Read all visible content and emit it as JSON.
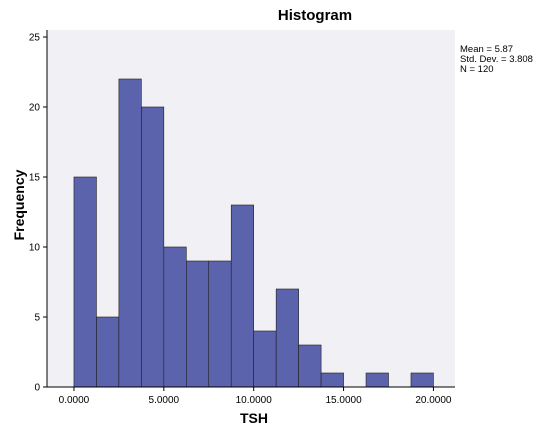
{
  "chart_data": {
    "type": "bar",
    "title": "Histogram",
    "xlabel": "TSH",
    "ylabel": "Frequency",
    "x_ticks": [
      "0.0000",
      "5.0000",
      "10.0000",
      "15.0000",
      "20.0000"
    ],
    "x_tick_values": [
      0,
      5,
      10,
      15,
      20
    ],
    "y_ticks": [
      "0",
      "5",
      "10",
      "15",
      "20",
      "25"
    ],
    "y_tick_values": [
      0,
      5,
      10,
      15,
      20,
      25
    ],
    "xlim": [
      -1.5,
      21.2
    ],
    "ylim": [
      0,
      25.5
    ],
    "bin_width": 1.25,
    "bins": [
      {
        "start": 0.0,
        "end": 1.25,
        "value": 15
      },
      {
        "start": 1.25,
        "end": 2.5,
        "value": 5
      },
      {
        "start": 2.5,
        "end": 3.75,
        "value": 22
      },
      {
        "start": 3.75,
        "end": 5.0,
        "value": 20
      },
      {
        "start": 5.0,
        "end": 6.25,
        "value": 10
      },
      {
        "start": 6.25,
        "end": 7.5,
        "value": 9
      },
      {
        "start": 7.5,
        "end": 8.75,
        "value": 9
      },
      {
        "start": 8.75,
        "end": 10.0,
        "value": 13
      },
      {
        "start": 10.0,
        "end": 11.25,
        "value": 4
      },
      {
        "start": 11.25,
        "end": 12.5,
        "value": 7
      },
      {
        "start": 12.5,
        "end": 13.75,
        "value": 3
      },
      {
        "start": 13.75,
        "end": 15.0,
        "value": 1
      },
      {
        "start": 15.0,
        "end": 16.25,
        "value": 0
      },
      {
        "start": 16.25,
        "end": 17.5,
        "value": 1
      },
      {
        "start": 17.5,
        "end": 18.75,
        "value": 0
      },
      {
        "start": 18.75,
        "end": 20.0,
        "value": 1
      }
    ],
    "stats": [
      "Mean = 5.87",
      "Std. Dev. = 3.808",
      "N = 120"
    ],
    "grid": false,
    "legend": "none",
    "colors": {
      "bar_fill": "#5b63ad",
      "bar_stroke": "#1e1e1e",
      "plot_background": "#f1f0f4",
      "axis": "#000000"
    }
  }
}
